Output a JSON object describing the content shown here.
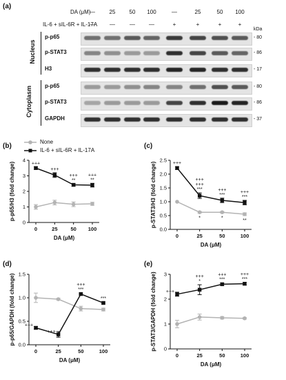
{
  "figure": {
    "panel_a": {
      "letter": "(a)",
      "dose_label": "DA (μM)",
      "dose_values": [
        "—",
        "25",
        "50",
        "100",
        "—",
        "25",
        "50",
        "100"
      ],
      "treatment_label": "IL-6 + sIL-6R + IL-17A",
      "treatment_values": [
        "—",
        "—",
        "—",
        "—",
        "+",
        "+",
        "+",
        "+"
      ],
      "kda_unit": "kDa",
      "section_nucleus": "Nucleus",
      "section_cytoplasm": "Cytoplasm",
      "rows": [
        {
          "label": "p-p65",
          "kda": "80"
        },
        {
          "label": "p-STAT3",
          "kda": "86"
        },
        {
          "label": "H3",
          "kda": "17"
        },
        {
          "label": "p-p65",
          "kda": "80"
        },
        {
          "label": "p-STAT3",
          "kda": "86"
        },
        {
          "label": "GAPDH",
          "kda": "37"
        }
      ],
      "band_intensity": [
        [
          0.55,
          0.55,
          0.65,
          0.6,
          0.8,
          0.75,
          0.7,
          0.65
        ],
        [
          0.45,
          0.4,
          0.35,
          0.35,
          0.85,
          0.75,
          0.65,
          0.6
        ],
        [
          0.85,
          0.85,
          0.85,
          0.85,
          0.9,
          0.9,
          0.85,
          0.85
        ],
        [
          0.35,
          0.35,
          0.4,
          0.45,
          0.45,
          0.55,
          0.7,
          0.65
        ],
        [
          0.3,
          0.35,
          0.35,
          0.35,
          0.75,
          0.85,
          0.95,
          0.9
        ],
        [
          0.85,
          0.85,
          0.85,
          0.85,
          0.85,
          0.85,
          0.85,
          0.85
        ]
      ]
    },
    "legend": {
      "none": "None",
      "treated": "IL-6 + sIL-6R + IL-17A",
      "none_color": "#b3b3b3",
      "treated_color": "#111111"
    }
  },
  "chart_data": [
    {
      "id": "b",
      "letter": "(b)",
      "type": "line",
      "x": [
        "0",
        "25",
        "50",
        "100"
      ],
      "xlabel": "DA (μM)",
      "ylabel": "p-p65/H3 (fold change)",
      "ylim": [
        0,
        4
      ],
      "yticks": [
        "0",
        "1",
        "2",
        "3",
        "4"
      ],
      "series": [
        {
          "name": "None",
          "values": [
            1.0,
            1.28,
            1.17,
            1.2
          ],
          "errors": [
            0.15,
            0.15,
            0.15,
            0.1
          ],
          "color": "#b3b3b3"
        },
        {
          "name": "IL-6 + sIL-6R + IL-17A",
          "values": [
            3.5,
            3.05,
            2.42,
            2.4
          ],
          "errors": [
            0.08,
            0.15,
            0.08,
            0.12
          ],
          "color": "#111111"
        }
      ],
      "annotations": [
        {
          "x": "0",
          "lines": [
            "+++"
          ]
        },
        {
          "x": "25",
          "lines": [
            "+++"
          ]
        },
        {
          "x": "50",
          "lines": [
            "+++",
            "**"
          ]
        },
        {
          "x": "100",
          "lines": [
            "+++",
            "**"
          ]
        }
      ],
      "below": []
    },
    {
      "id": "c",
      "letter": "(c)",
      "type": "line",
      "x": [
        "0",
        "25",
        "50",
        "100"
      ],
      "xlabel": "DA (μM)",
      "ylabel": "p-STAT3/H3 (fold change)",
      "ylim": [
        0,
        2.5
      ],
      "yticks": [
        "0.0",
        "0.5",
        "1.0",
        "1.5",
        "2.0",
        "2.5"
      ],
      "series": [
        {
          "name": "None",
          "values": [
            1.0,
            0.62,
            0.62,
            0.55
          ],
          "errors": [
            0,
            0.03,
            0.03,
            0.05
          ],
          "color": "#b3b3b3"
        },
        {
          "name": "IL-6 + sIL-6R + IL-17A",
          "values": [
            2.22,
            1.22,
            1.05,
            0.97
          ],
          "errors": [
            0.05,
            0.1,
            0.08,
            0.08
          ],
          "color": "#111111"
        }
      ],
      "annotations": [
        {
          "x": "0",
          "lines": [
            "+++"
          ]
        },
        {
          "x": "25",
          "lines": [
            "+++",
            "+++",
            "***"
          ]
        },
        {
          "x": "50",
          "lines": [
            "+++",
            "***"
          ]
        },
        {
          "x": "100",
          "lines": [
            "+++",
            "***"
          ]
        }
      ],
      "below": [
        {
          "x": "25",
          "text": "*"
        },
        {
          "x": "50",
          "text": "*"
        },
        {
          "x": "100",
          "text": "**"
        }
      ]
    },
    {
      "id": "d",
      "letter": "(d)",
      "type": "line",
      "x": [
        "0",
        "25",
        "50",
        "100"
      ],
      "xlabel": "DA (μM)",
      "ylabel": "p-p65/GAPDH (fold change)",
      "ylim": [
        0,
        1.5
      ],
      "yticks": [
        "0.0",
        "0.5",
        "1.0",
        "1.5"
      ],
      "series": [
        {
          "name": "None",
          "values": [
            1.0,
            0.97,
            0.77,
            0.75
          ],
          "errors": [
            0.1,
            0.02,
            0.05,
            0.03
          ],
          "color": "#b3b3b3"
        },
        {
          "name": "IL-6 + sIL-6R + IL-17A",
          "values": [
            0.36,
            0.22,
            1.08,
            0.89
          ],
          "errors": [
            0.03,
            0.06,
            0.02,
            0.02
          ],
          "color": "#111111"
        }
      ],
      "annotations": [
        {
          "x": "50",
          "lines": [
            "+++",
            "***"
          ]
        },
        {
          "x": "100",
          "lines": [
            "***"
          ]
        }
      ],
      "side": [
        {
          "x": "0",
          "text": "+++"
        },
        {
          "x": "25",
          "text": "+++"
        }
      ],
      "below": []
    },
    {
      "id": "e",
      "letter": "(e)",
      "type": "line",
      "x": [
        "0",
        "25",
        "50",
        "100"
      ],
      "xlabel": "DA (μM)",
      "ylabel": "p-STAT3/GAPDH (fold change)",
      "ylim": [
        0,
        3
      ],
      "yticks": [
        "0",
        "1",
        "2",
        "3"
      ],
      "series": [
        {
          "name": "None",
          "values": [
            1.0,
            1.28,
            1.25,
            1.23
          ],
          "errors": [
            0.15,
            0.12,
            0.05,
            0.03
          ],
          "color": "#b3b3b3"
        },
        {
          "name": "IL-6 + sIL-6R + IL-17A",
          "values": [
            2.2,
            2.38,
            2.6,
            2.62
          ],
          "errors": [
            0.08,
            0.2,
            0.05,
            0.05
          ],
          "color": "#111111"
        }
      ],
      "annotations": [
        {
          "x": "25",
          "lines": [
            "+++",
            "*"
          ]
        },
        {
          "x": "50",
          "lines": [
            "+++",
            "***"
          ]
        },
        {
          "x": "100",
          "lines": [
            "+++",
            "***"
          ]
        }
      ],
      "side": [
        {
          "x": "0",
          "text": "+++"
        }
      ],
      "below": []
    }
  ]
}
